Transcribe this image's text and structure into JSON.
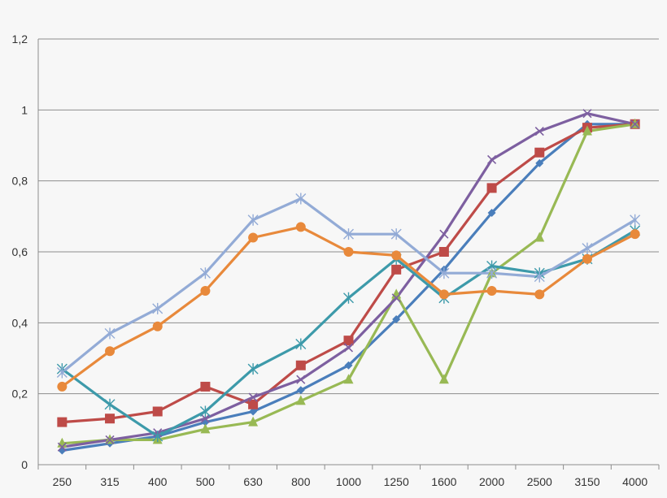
{
  "chart_data": {
    "type": "line",
    "title": "",
    "xlabel": "",
    "ylabel": "",
    "categories": [
      "250",
      "315",
      "400",
      "500",
      "630",
      "800",
      "1000",
      "1250",
      "1600",
      "2000",
      "2500",
      "3150",
      "4000"
    ],
    "ylim": [
      0,
      1.2
    ],
    "yticks": [
      "0",
      "0,2",
      "0,4",
      "0,6",
      "0,8",
      "1",
      "1,2"
    ],
    "grid": true,
    "legend": "none",
    "series": [
      {
        "color": "#4a7ebb",
        "marker": "diamond",
        "values": [
          0.04,
          0.06,
          0.08,
          0.12,
          0.15,
          0.21,
          0.28,
          0.41,
          0.55,
          0.71,
          0.85,
          0.96,
          0.96
        ]
      },
      {
        "color": "#be4b48",
        "marker": "square",
        "values": [
          0.12,
          0.13,
          0.15,
          0.22,
          0.17,
          0.28,
          0.35,
          0.55,
          0.6,
          0.78,
          0.88,
          0.95,
          0.96
        ]
      },
      {
        "color": "#98b954",
        "marker": "triangle",
        "values": [
          0.06,
          0.07,
          0.07,
          0.1,
          0.12,
          0.18,
          0.24,
          0.48,
          0.24,
          0.54,
          0.64,
          0.94,
          0.96
        ]
      },
      {
        "color": "#7d5fa0",
        "marker": "x",
        "values": [
          0.05,
          0.07,
          0.09,
          0.13,
          0.19,
          0.24,
          0.33,
          0.47,
          0.65,
          0.86,
          0.94,
          0.99,
          0.96
        ]
      },
      {
        "color": "#3d9aaa",
        "marker": "star",
        "values": [
          0.27,
          0.17,
          0.08,
          0.15,
          0.27,
          0.34,
          0.47,
          0.58,
          0.47,
          0.56,
          0.54,
          0.58,
          0.66
        ]
      },
      {
        "color": "#e8893b",
        "marker": "circle",
        "values": [
          0.22,
          0.32,
          0.39,
          0.49,
          0.64,
          0.67,
          0.6,
          0.59,
          0.48,
          0.49,
          0.48,
          0.58,
          0.65
        ]
      },
      {
        "color": "#93abd6",
        "marker": "star",
        "values": [
          0.26,
          0.37,
          0.44,
          0.54,
          0.69,
          0.75,
          0.65,
          0.65,
          0.54,
          0.54,
          0.53,
          0.61,
          0.69
        ]
      }
    ]
  }
}
